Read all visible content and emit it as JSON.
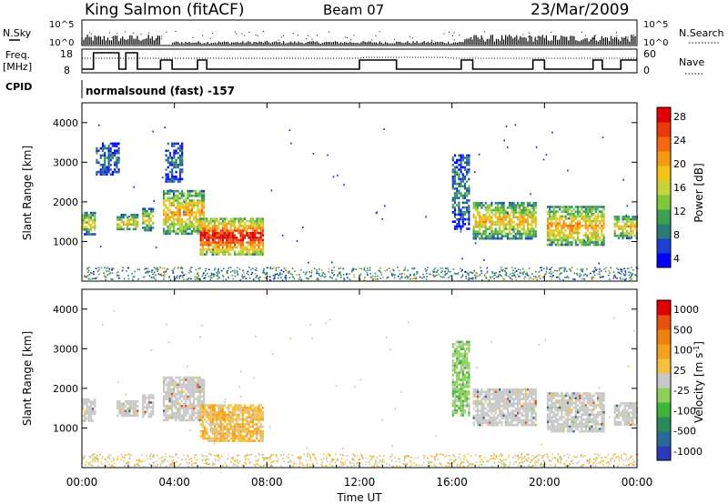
{
  "header": {
    "station": "King Salmon (fitACF)",
    "beam": "Beam 07",
    "date": "23/Mar/2009"
  },
  "top_panels": {
    "nsky_label": "N.Sky",
    "nsearch_label": "N.Search",
    "nsky_ticks": [
      "10^5",
      "10^0"
    ],
    "nsearch_ticks": [
      "10^5",
      "10^0"
    ],
    "freq_label_1": "Freq.",
    "freq_label_2": "[MHz]",
    "freq_ticks": [
      "18",
      "8"
    ],
    "nave_label": "Nave",
    "nave_ticks": [
      "60",
      "0"
    ],
    "cpid_label": "CPID",
    "cpid_value": "normalsound (fast) -157"
  },
  "x_axis": {
    "ticks": [
      "00:00",
      "04:00",
      "08:00",
      "12:00",
      "16:00",
      "20:00",
      "00:00"
    ],
    "label": "Time UT"
  },
  "chart_data": [
    {
      "type": "heatmap",
      "panel": "power",
      "ylabel": "Slant Range [km]",
      "ylim": [
        0,
        4500
      ],
      "yticks": [
        "4000",
        "3000",
        "2000",
        "1000"
      ],
      "xlim_hours": [
        0,
        24
      ],
      "colorbar": {
        "label": "Power [dB]",
        "ticks": [
          "28",
          "24",
          "20",
          "16",
          "12",
          "8",
          "4"
        ],
        "colors": [
          "#0000ff",
          "#1c3fd0",
          "#2a7a7a",
          "#3da04e",
          "#7fc83c",
          "#c8d23a",
          "#f5c218",
          "#f59a14",
          "#f26a10",
          "#e8380c",
          "#e00000"
        ]
      },
      "regions": [
        {
          "t0": 0.0,
          "t1": 0.6,
          "r0": 1200,
          "r1": 1750,
          "level": 0.45
        },
        {
          "t0": 0.6,
          "t1": 1.6,
          "r0": 2700,
          "r1": 3500,
          "level": 0.15
        },
        {
          "t0": 1.5,
          "t1": 2.4,
          "r0": 1300,
          "r1": 1700,
          "level": 0.5
        },
        {
          "t0": 2.6,
          "t1": 3.1,
          "r0": 1300,
          "r1": 1850,
          "level": 0.45
        },
        {
          "t0": 3.5,
          "t1": 5.3,
          "r0": 1200,
          "r1": 2300,
          "level": 0.6
        },
        {
          "t0": 3.6,
          "t1": 4.3,
          "r0": 2500,
          "r1": 3500,
          "level": 0.15
        },
        {
          "t0": 5.1,
          "t1": 7.8,
          "r0": 700,
          "r1": 1600,
          "level": 0.85
        },
        {
          "t0": 16.0,
          "t1": 16.7,
          "r0": 1300,
          "r1": 3200,
          "level": 0.2
        },
        {
          "t0": 16.9,
          "t1": 19.6,
          "r0": 1100,
          "r1": 2000,
          "level": 0.55
        },
        {
          "t0": 20.1,
          "t1": 22.6,
          "r0": 900,
          "r1": 1900,
          "level": 0.6
        },
        {
          "t0": 23.0,
          "t1": 24.0,
          "r0": 1100,
          "r1": 1650,
          "level": 0.55
        }
      ]
    },
    {
      "type": "heatmap",
      "panel": "velocity",
      "ylabel": "Slant Range [km]",
      "ylim": [
        0,
        4500
      ],
      "yticks": [
        "4000",
        "3000",
        "2000",
        "1000"
      ],
      "xlim_hours": [
        0,
        24
      ],
      "colorbar": {
        "label": "Velocity [m s",
        "label_sup": "-1",
        "label_tail": "]",
        "ticks": [
          "1000",
          "500",
          "100",
          "25",
          "-25",
          "-100",
          "-500",
          "-1000"
        ],
        "colors": [
          "#2a3ab8",
          "#2a6a9a",
          "#2a8a5a",
          "#3cb43c",
          "#8cd05a",
          "#c8c8c8",
          "#f5c040",
          "#f5a020",
          "#f08010",
          "#e85010",
          "#e00000"
        ]
      },
      "regions": [
        {
          "t0": 0.0,
          "t1": 0.6,
          "r0": 1200,
          "r1": 1750,
          "kind": "gray"
        },
        {
          "t0": 1.5,
          "t1": 2.4,
          "r0": 1300,
          "r1": 1700,
          "kind": "gray"
        },
        {
          "t0": 2.6,
          "t1": 3.1,
          "r0": 1300,
          "r1": 1850,
          "kind": "gray"
        },
        {
          "t0": 3.5,
          "t1": 5.3,
          "r0": 1200,
          "r1": 2300,
          "kind": "gray"
        },
        {
          "t0": 5.1,
          "t1": 7.8,
          "r0": 700,
          "r1": 1600,
          "kind": "orange"
        },
        {
          "t0": 16.0,
          "t1": 16.7,
          "r0": 1300,
          "r1": 3200,
          "kind": "green"
        },
        {
          "t0": 16.9,
          "t1": 19.6,
          "r0": 1100,
          "r1": 2000,
          "kind": "gray"
        },
        {
          "t0": 20.1,
          "t1": 22.6,
          "r0": 900,
          "r1": 1900,
          "kind": "gray"
        },
        {
          "t0": 23.0,
          "t1": 24.0,
          "r0": 1100,
          "r1": 1650,
          "kind": "gray"
        }
      ]
    }
  ]
}
